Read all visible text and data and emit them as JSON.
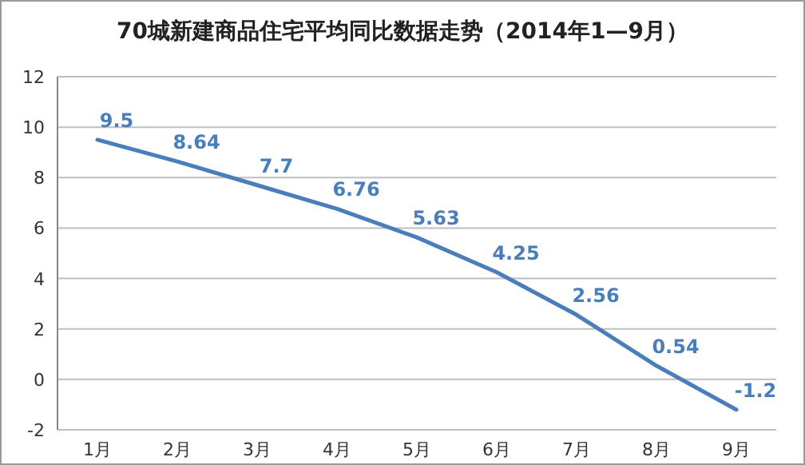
{
  "chart_data": {
    "type": "line",
    "title": "70城新建商品住宅平均同比数据走势（2014年1—9月）",
    "categories": [
      "1月",
      "2月",
      "3月",
      "4月",
      "5月",
      "6月",
      "7月",
      "8月",
      "9月"
    ],
    "series": [
      {
        "color": "#4a7ebb",
        "values": [
          9.5,
          8.64,
          7.7,
          6.76,
          5.63,
          4.25,
          2.56,
          0.54,
          -1.2
        ]
      }
    ],
    "ylim": [
      -2,
      12
    ],
    "yticks": [
      -2,
      0,
      2,
      4,
      6,
      8,
      10,
      12
    ],
    "grid": "y",
    "data_labels": true,
    "marker": "none",
    "line_style": "solid"
  }
}
